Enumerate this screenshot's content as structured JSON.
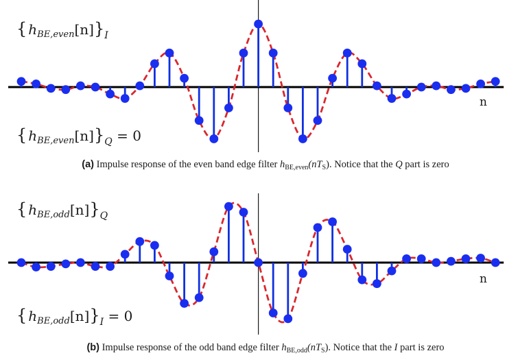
{
  "chart_data": [
    {
      "type": "stem",
      "x_axis_label": "n",
      "n_range": [
        -16,
        16
      ],
      "top_label": {
        "main": "h",
        "sub": "BE,even",
        "arg": "[n]",
        "outer": "I",
        "suffix": ""
      },
      "bottom_label": {
        "main": "h",
        "sub": "BE,even",
        "arg": "[n]",
        "outer": "Q",
        "suffix": " = 0"
      },
      "stem_color": "#1030e0",
      "marker_color": "#1a2ef0",
      "envelope_color": "#d9272e",
      "n": [
        -16,
        -15,
        -14,
        -13,
        -12,
        -11,
        -10,
        -9,
        -8,
        -7,
        -6,
        -5,
        -4,
        -3,
        -2,
        -1,
        0,
        1,
        2,
        3,
        4,
        5,
        6,
        7,
        8,
        9,
        10,
        11,
        12,
        13,
        14,
        15,
        16
      ],
      "values": [
        0.09,
        0.05,
        -0.02,
        -0.04,
        0.02,
        0.0,
        -0.11,
        -0.18,
        0.02,
        0.37,
        0.54,
        0.14,
        -0.53,
        -0.82,
        -0.33,
        0.54,
        1.0,
        0.54,
        -0.33,
        -0.82,
        -0.53,
        0.14,
        0.54,
        0.37,
        0.02,
        -0.18,
        -0.11,
        0.0,
        0.02,
        -0.04,
        -0.02,
        0.05,
        0.09
      ],
      "caption": {
        "tag": "(a)",
        "text1": " Impulse response of the even band edge filter ",
        "var": "h",
        "sub": "BE,even",
        "arg": "(nT",
        "argsub": "S",
        "argend": ")",
        "text2": ". Notice that the ",
        "part": "Q",
        "text3": " part is zero"
      }
    },
    {
      "type": "stem",
      "x_axis_label": "n",
      "n_range": [
        -16,
        16
      ],
      "top_label": {
        "main": "h",
        "sub": "BE,odd",
        "arg": "[n]",
        "outer": "Q",
        "suffix": ""
      },
      "bottom_label": {
        "main": "h",
        "sub": "BE,odd",
        "arg": "[n]",
        "outer": "I",
        "suffix": " = 0"
      },
      "stem_color": "#1030e0",
      "marker_color": "#1a2ef0",
      "envelope_color": "#d9272e",
      "n": [
        -16,
        -15,
        -14,
        -13,
        -12,
        -11,
        -10,
        -9,
        -8,
        -7,
        -6,
        -5,
        -4,
        -3,
        -2,
        -1,
        0,
        1,
        2,
        3,
        4,
        5,
        6,
        7,
        8,
        9,
        10,
        11,
        12,
        13,
        14,
        15,
        16
      ],
      "values": [
        0.0,
        -0.07,
        -0.06,
        -0.02,
        0.0,
        -0.06,
        -0.06,
        0.13,
        0.33,
        0.27,
        -0.21,
        -0.64,
        -0.55,
        0.17,
        0.88,
        0.79,
        0.0,
        -0.79,
        -0.88,
        -0.17,
        0.55,
        0.64,
        0.21,
        -0.27,
        -0.33,
        -0.13,
        0.06,
        0.06,
        0.0,
        0.02,
        0.06,
        0.07,
        0.0
      ],
      "caption": {
        "tag": "(b)",
        "text1": " Impulse response of the odd band edge filter ",
        "var": "h",
        "sub": "BE,odd",
        "arg": "(nT",
        "argsub": "S",
        "argend": ")",
        "text2": ". Notice that the ",
        "part": "I",
        "text3": " part is zero"
      }
    }
  ]
}
